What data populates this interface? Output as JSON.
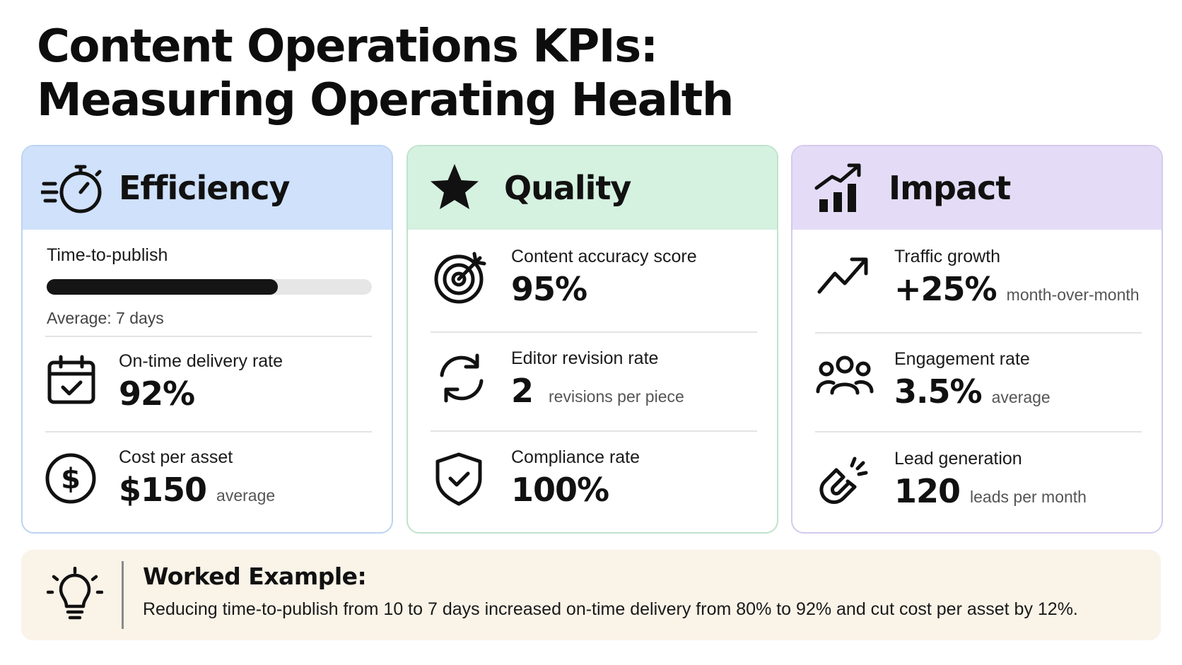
{
  "title": {
    "line1": "Content Operations KPIs:",
    "line2": "Measuring Operating Health"
  },
  "colors": {
    "efficiency": "#cfe1fb",
    "efficiency_border": "#bcd3f2",
    "quality": "#d5f1e0",
    "quality_border": "#bfe3cd",
    "impact": "#e4dcf7",
    "impact_border": "#d4c9ef",
    "example_bg": "#faf3e8"
  },
  "efficiency": {
    "title": "Efficiency",
    "icon": "stopwatch-icon",
    "time_to_publish": {
      "label": "Time-to-publish",
      "progress": 0.71,
      "note": "Average: 7 days"
    },
    "on_time": {
      "icon": "calendar-check-icon",
      "label": "On-time delivery rate",
      "value": "92%"
    },
    "cost": {
      "icon": "dollar-coin-icon",
      "label": "Cost per asset",
      "value": "$150",
      "unit": "average"
    }
  },
  "quality": {
    "title": "Quality",
    "icon": "star-icon",
    "accuracy": {
      "icon": "target-icon",
      "label": "Content accuracy score",
      "value": "95%"
    },
    "revision": {
      "icon": "refresh-icon",
      "label": "Editor revision rate",
      "value": "2",
      "unit": "revisions per piece"
    },
    "compliance": {
      "icon": "shield-check-icon",
      "label": "Compliance rate",
      "value": "100%"
    }
  },
  "impact": {
    "title": "Impact",
    "icon": "bar-chart-trend-icon",
    "traffic": {
      "icon": "trend-up-icon",
      "label": "Traffic growth",
      "value": "+25%",
      "unit": "month-over-month"
    },
    "engagement": {
      "icon": "people-icon",
      "label": "Engagement rate",
      "value": "3.5%",
      "unit": "average"
    },
    "leads": {
      "icon": "magnet-icon",
      "label": "Lead generation",
      "value": "120",
      "unit": "leads per month"
    }
  },
  "example": {
    "icon": "lightbulb-icon",
    "title": "Worked Example:",
    "text": "Reducing time-to-publish from 10 to 7 days increased on-time delivery from 80% to 92% and cut cost per asset by 12%."
  }
}
